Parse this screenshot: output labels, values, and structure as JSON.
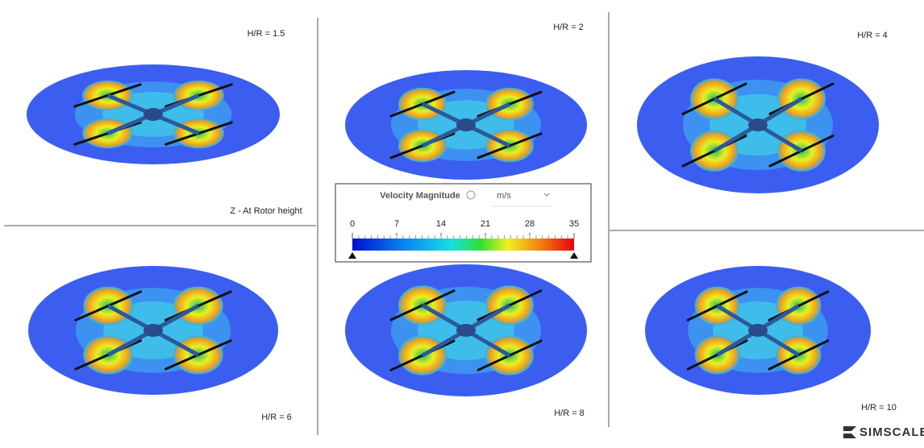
{
  "panels": [
    {
      "label": "H/R = 1.5"
    },
    {
      "label": "H/R = 2"
    },
    {
      "label": "H/R = 4"
    },
    {
      "label": "H/R = 6"
    },
    {
      "label": "H/R = 8"
    },
    {
      "label": "H/R = 10"
    }
  ],
  "annotation": "Z - At Rotor height",
  "legend": {
    "title": "Velocity Magnitude",
    "unit": "m/s",
    "ticks": [
      0,
      7,
      14,
      21,
      28,
      35
    ]
  },
  "logo": "SIMSCALE"
}
